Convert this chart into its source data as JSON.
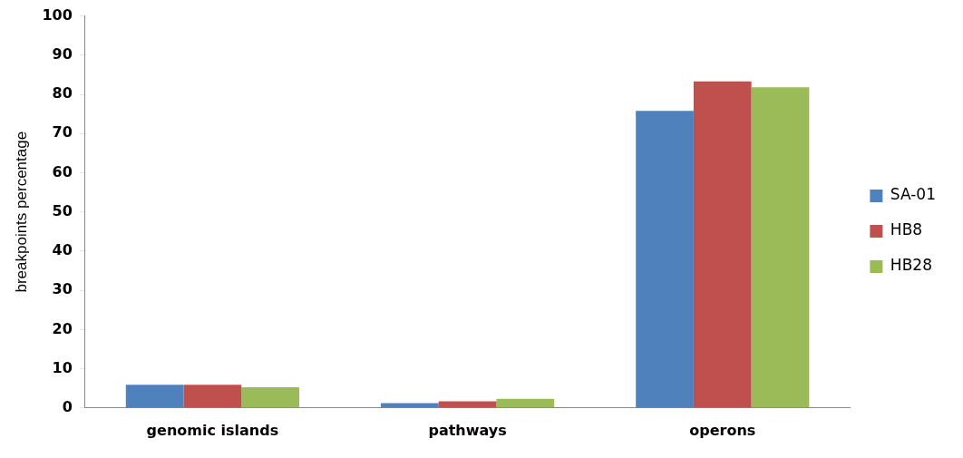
{
  "chart_data": {
    "type": "bar",
    "ylabel": "breakpoints percentage",
    "categories": [
      "genomic islands",
      "pathways",
      "operons"
    ],
    "series": [
      {
        "name": "SA-01",
        "color": "#4f81bd",
        "values": [
          5.9,
          1.2,
          75.8
        ]
      },
      {
        "name": "HB8",
        "color": "#c0504d",
        "values": [
          5.9,
          1.7,
          83.3
        ]
      },
      {
        "name": "HB28",
        "color": "#9bbb59",
        "values": [
          5.3,
          2.3,
          81.8
        ]
      }
    ],
    "ylim": [
      0,
      100
    ],
    "yticks": [
      0,
      10,
      20,
      30,
      40,
      50,
      60,
      70,
      80,
      90,
      100
    ],
    "grid": false,
    "legend": "right"
  }
}
